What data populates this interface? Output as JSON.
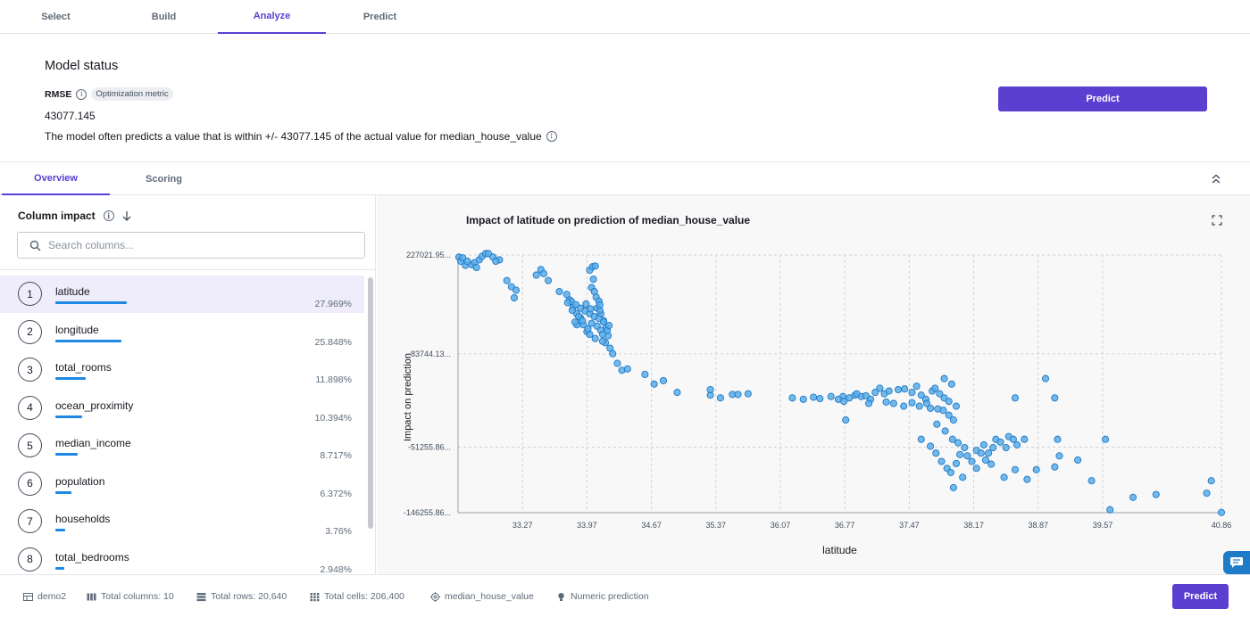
{
  "top_tabs": [
    {
      "label": "Select",
      "active": false
    },
    {
      "label": "Build",
      "active": false
    },
    {
      "label": "Analyze",
      "active": true
    },
    {
      "label": "Predict",
      "active": false
    }
  ],
  "model_status": {
    "title": "Model status",
    "metric_label": "RMSE",
    "metric_badge": "Optimization metric",
    "metric_value": "43077.145",
    "description": "The model often predicts a value that is within +/- 43077.145 of the actual value for median_house_value"
  },
  "predict_button_label": "Predict",
  "sub_tabs": [
    {
      "label": "Overview",
      "active": true
    },
    {
      "label": "Scoring",
      "active": false
    }
  ],
  "column_impact": {
    "title": "Column impact",
    "search_placeholder": "Search columns...",
    "columns": [
      {
        "rank": "1",
        "name": "latitude",
        "percent": "27.969%",
        "value": 27.969
      },
      {
        "rank": "2",
        "name": "longitude",
        "percent": "25.848%",
        "value": 25.848
      },
      {
        "rank": "3",
        "name": "total_rooms",
        "percent": "11.898%",
        "value": 11.898
      },
      {
        "rank": "4",
        "name": "ocean_proximity",
        "percent": "10.394%",
        "value": 10.394
      },
      {
        "rank": "5",
        "name": "median_income",
        "percent": "8.717%",
        "value": 8.717
      },
      {
        "rank": "6",
        "name": "population",
        "percent": "6.372%",
        "value": 6.372
      },
      {
        "rank": "7",
        "name": "households",
        "percent": "3.76%",
        "value": 3.76
      },
      {
        "rank": "8",
        "name": "total_bedrooms",
        "percent": "2.948%",
        "value": 2.948
      }
    ]
  },
  "chart_data": {
    "type": "scatter",
    "title": "Impact of latitude on prediction of median_house_value",
    "xlabel": "latitude",
    "ylabel": "Impact on prediction",
    "xlim": [
      32.57,
      40.86
    ],
    "ylim": [
      -146255.86,
      227021.95
    ],
    "x_ticks": [
      "33.27",
      "33.97",
      "34.67",
      "35.37",
      "36.07",
      "36.77",
      "37.47",
      "38.17",
      "38.87",
      "39.57",
      "40.86"
    ],
    "x_tick_values": [
      33.27,
      33.97,
      34.67,
      35.37,
      36.07,
      36.77,
      37.47,
      38.17,
      38.87,
      39.57,
      40.86
    ],
    "y_ticks": [
      "227021.95...",
      "83744.13...",
      "-51255.86...",
      "-146255.86..."
    ],
    "y_tick_values": [
      227021.95,
      83744.13,
      -51255.86,
      -146255.86
    ],
    "grid": true,
    "color": "#5aaee8",
    "points": [
      [
        32.58,
        224000
      ],
      [
        32.6,
        218000
      ],
      [
        32.65,
        212000
      ],
      [
        32.72,
        213000
      ],
      [
        32.75,
        216000
      ],
      [
        32.8,
        220000
      ],
      [
        32.83,
        225000
      ],
      [
        32.87,
        229000
      ],
      [
        32.9,
        229000
      ],
      [
        32.95,
        224000
      ],
      [
        33.02,
        220000
      ],
      [
        32.67,
        218000
      ],
      [
        32.62,
        223000
      ],
      [
        32.77,
        209000
      ],
      [
        32.98,
        218000
      ],
      [
        33.1,
        190000
      ],
      [
        33.15,
        181000
      ],
      [
        33.2,
        176000
      ],
      [
        33.18,
        165000
      ],
      [
        33.42,
        198000
      ],
      [
        33.47,
        206000
      ],
      [
        33.5,
        200000
      ],
      [
        33.55,
        190000
      ],
      [
        33.67,
        174000
      ],
      [
        33.78,
        162000
      ],
      [
        33.82,
        152000
      ],
      [
        33.86,
        142000
      ],
      [
        33.9,
        136000
      ],
      [
        33.93,
        126000
      ],
      [
        33.97,
        116000
      ],
      [
        33.75,
        170000
      ],
      [
        34.0,
        205000
      ],
      [
        34.03,
        210000
      ],
      [
        34.06,
        211000
      ],
      [
        34.04,
        192000
      ],
      [
        34.02,
        180000
      ],
      [
        34.05,
        174000
      ],
      [
        34.07,
        166000
      ],
      [
        34.1,
        160000
      ],
      [
        34.08,
        150000
      ],
      [
        34.12,
        142000
      ],
      [
        34.15,
        132000
      ],
      [
        34.18,
        122000
      ],
      [
        34.2,
        110000
      ],
      [
        34.17,
        100000
      ],
      [
        34.22,
        92000
      ],
      [
        34.25,
        84000
      ],
      [
        34.3,
        70000
      ],
      [
        34.35,
        60000
      ],
      [
        34.41,
        62000
      ],
      [
        33.8,
        160000
      ],
      [
        33.85,
        155000
      ],
      [
        33.9,
        150000
      ],
      [
        33.95,
        146000
      ],
      [
        34.0,
        142000
      ],
      [
        34.05,
        138000
      ],
      [
        34.1,
        135000
      ],
      [
        34.15,
        130000
      ],
      [
        33.88,
        138000
      ],
      [
        33.92,
        132000
      ],
      [
        34.02,
        128000
      ],
      [
        34.08,
        124000
      ],
      [
        34.12,
        118000
      ],
      [
        34.0,
        112000
      ],
      [
        34.06,
        106000
      ],
      [
        33.86,
        126000
      ],
      [
        33.98,
        120000
      ],
      [
        34.14,
        112000
      ],
      [
        34.19,
        118000
      ],
      [
        33.96,
        156000
      ],
      [
        34.01,
        149000
      ],
      [
        34.11,
        147000
      ],
      [
        33.81,
        147000
      ],
      [
        33.76,
        158000
      ],
      [
        33.84,
        130000
      ],
      [
        34.21,
        125000
      ],
      [
        34.14,
        102000
      ],
      [
        34.11,
        155000
      ],
      [
        34.6,
        54000
      ],
      [
        34.7,
        40000
      ],
      [
        34.8,
        45000
      ],
      [
        34.95,
        28000
      ],
      [
        35.31,
        24000
      ],
      [
        35.42,
        20000
      ],
      [
        35.55,
        25000
      ],
      [
        35.61,
        25000
      ],
      [
        35.72,
        26000
      ],
      [
        35.31,
        32000
      ],
      [
        36.2,
        20000
      ],
      [
        36.32,
        18000
      ],
      [
        36.43,
        21000
      ],
      [
        36.5,
        19000
      ],
      [
        36.62,
        22000
      ],
      [
        36.75,
        22000
      ],
      [
        36.82,
        20000
      ],
      [
        36.88,
        24000
      ],
      [
        36.95,
        22000
      ],
      [
        37.0,
        23000
      ],
      [
        37.05,
        18000
      ],
      [
        37.1,
        28000
      ],
      [
        37.15,
        34000
      ],
      [
        37.2,
        26000
      ],
      [
        37.25,
        30000
      ],
      [
        37.35,
        32000
      ],
      [
        37.42,
        33000
      ],
      [
        37.5,
        28000
      ],
      [
        37.55,
        37000
      ],
      [
        37.6,
        24000
      ],
      [
        37.65,
        18000
      ],
      [
        37.72,
        30000
      ],
      [
        37.75,
        34000
      ],
      [
        37.8,
        26000
      ],
      [
        37.85,
        20000
      ],
      [
        37.9,
        15000
      ],
      [
        37.98,
        8000
      ],
      [
        37.85,
        48000
      ],
      [
        37.93,
        40000
      ],
      [
        36.7,
        18000
      ],
      [
        36.76,
        15000
      ],
      [
        36.9,
        26000
      ],
      [
        37.03,
        12000
      ],
      [
        37.22,
        14000
      ],
      [
        37.3,
        12000
      ],
      [
        37.41,
        8000
      ],
      [
        37.5,
        13000
      ],
      [
        37.58,
        8000
      ],
      [
        37.66,
        12000
      ],
      [
        37.7,
        5000
      ],
      [
        37.78,
        4000
      ],
      [
        37.84,
        2000
      ],
      [
        37.9,
        -5000
      ],
      [
        37.95,
        -12000
      ],
      [
        37.77,
        -18000
      ],
      [
        37.86,
        -28000
      ],
      [
        37.94,
        -40000
      ],
      [
        38.0,
        -45000
      ],
      [
        38.07,
        -52000
      ],
      [
        37.6,
        -40000
      ],
      [
        37.7,
        -50000
      ],
      [
        37.76,
        -60000
      ],
      [
        37.82,
        -72000
      ],
      [
        37.88,
        -82000
      ],
      [
        37.92,
        -88000
      ],
      [
        37.98,
        -75000
      ],
      [
        38.02,
        -62000
      ],
      [
        36.78,
        -12000
      ],
      [
        38.1,
        -64000
      ],
      [
        38.15,
        -72000
      ],
      [
        38.2,
        -56000
      ],
      [
        38.25,
        -60000
      ],
      [
        38.28,
        -48000
      ],
      [
        38.33,
        -60000
      ],
      [
        38.38,
        -52000
      ],
      [
        38.41,
        -40000
      ],
      [
        38.46,
        -44000
      ],
      [
        38.52,
        -52000
      ],
      [
        38.55,
        -36000
      ],
      [
        38.6,
        -40000
      ],
      [
        38.64,
        -48000
      ],
      [
        38.72,
        -40000
      ],
      [
        38.3,
        -70000
      ],
      [
        38.36,
        -76000
      ],
      [
        38.2,
        -82000
      ],
      [
        38.05,
        -95000
      ],
      [
        37.95,
        -110000
      ],
      [
        38.5,
        -95000
      ],
      [
        38.62,
        -84000
      ],
      [
        38.75,
        -98000
      ],
      [
        38.85,
        -84000
      ],
      [
        38.62,
        20000
      ],
      [
        38.95,
        48000
      ],
      [
        39.05,
        20000
      ],
      [
        39.08,
        -40000
      ],
      [
        39.1,
        -64000
      ],
      [
        39.05,
        -80000
      ],
      [
        39.3,
        -70000
      ],
      [
        39.45,
        -100000
      ],
      [
        39.65,
        -142000
      ],
      [
        39.9,
        -124000
      ],
      [
        40.15,
        -120000
      ],
      [
        40.7,
        -118000
      ],
      [
        40.75,
        -100000
      ],
      [
        40.86,
        -146000
      ],
      [
        39.6,
        -40000
      ]
    ]
  },
  "footer": {
    "dataset": "demo2",
    "total_columns": "Total columns: 10",
    "total_rows": "Total rows: 20,640",
    "total_cells": "Total cells: 206,400",
    "target": "median_house_value",
    "problem_type": "Numeric prediction"
  }
}
